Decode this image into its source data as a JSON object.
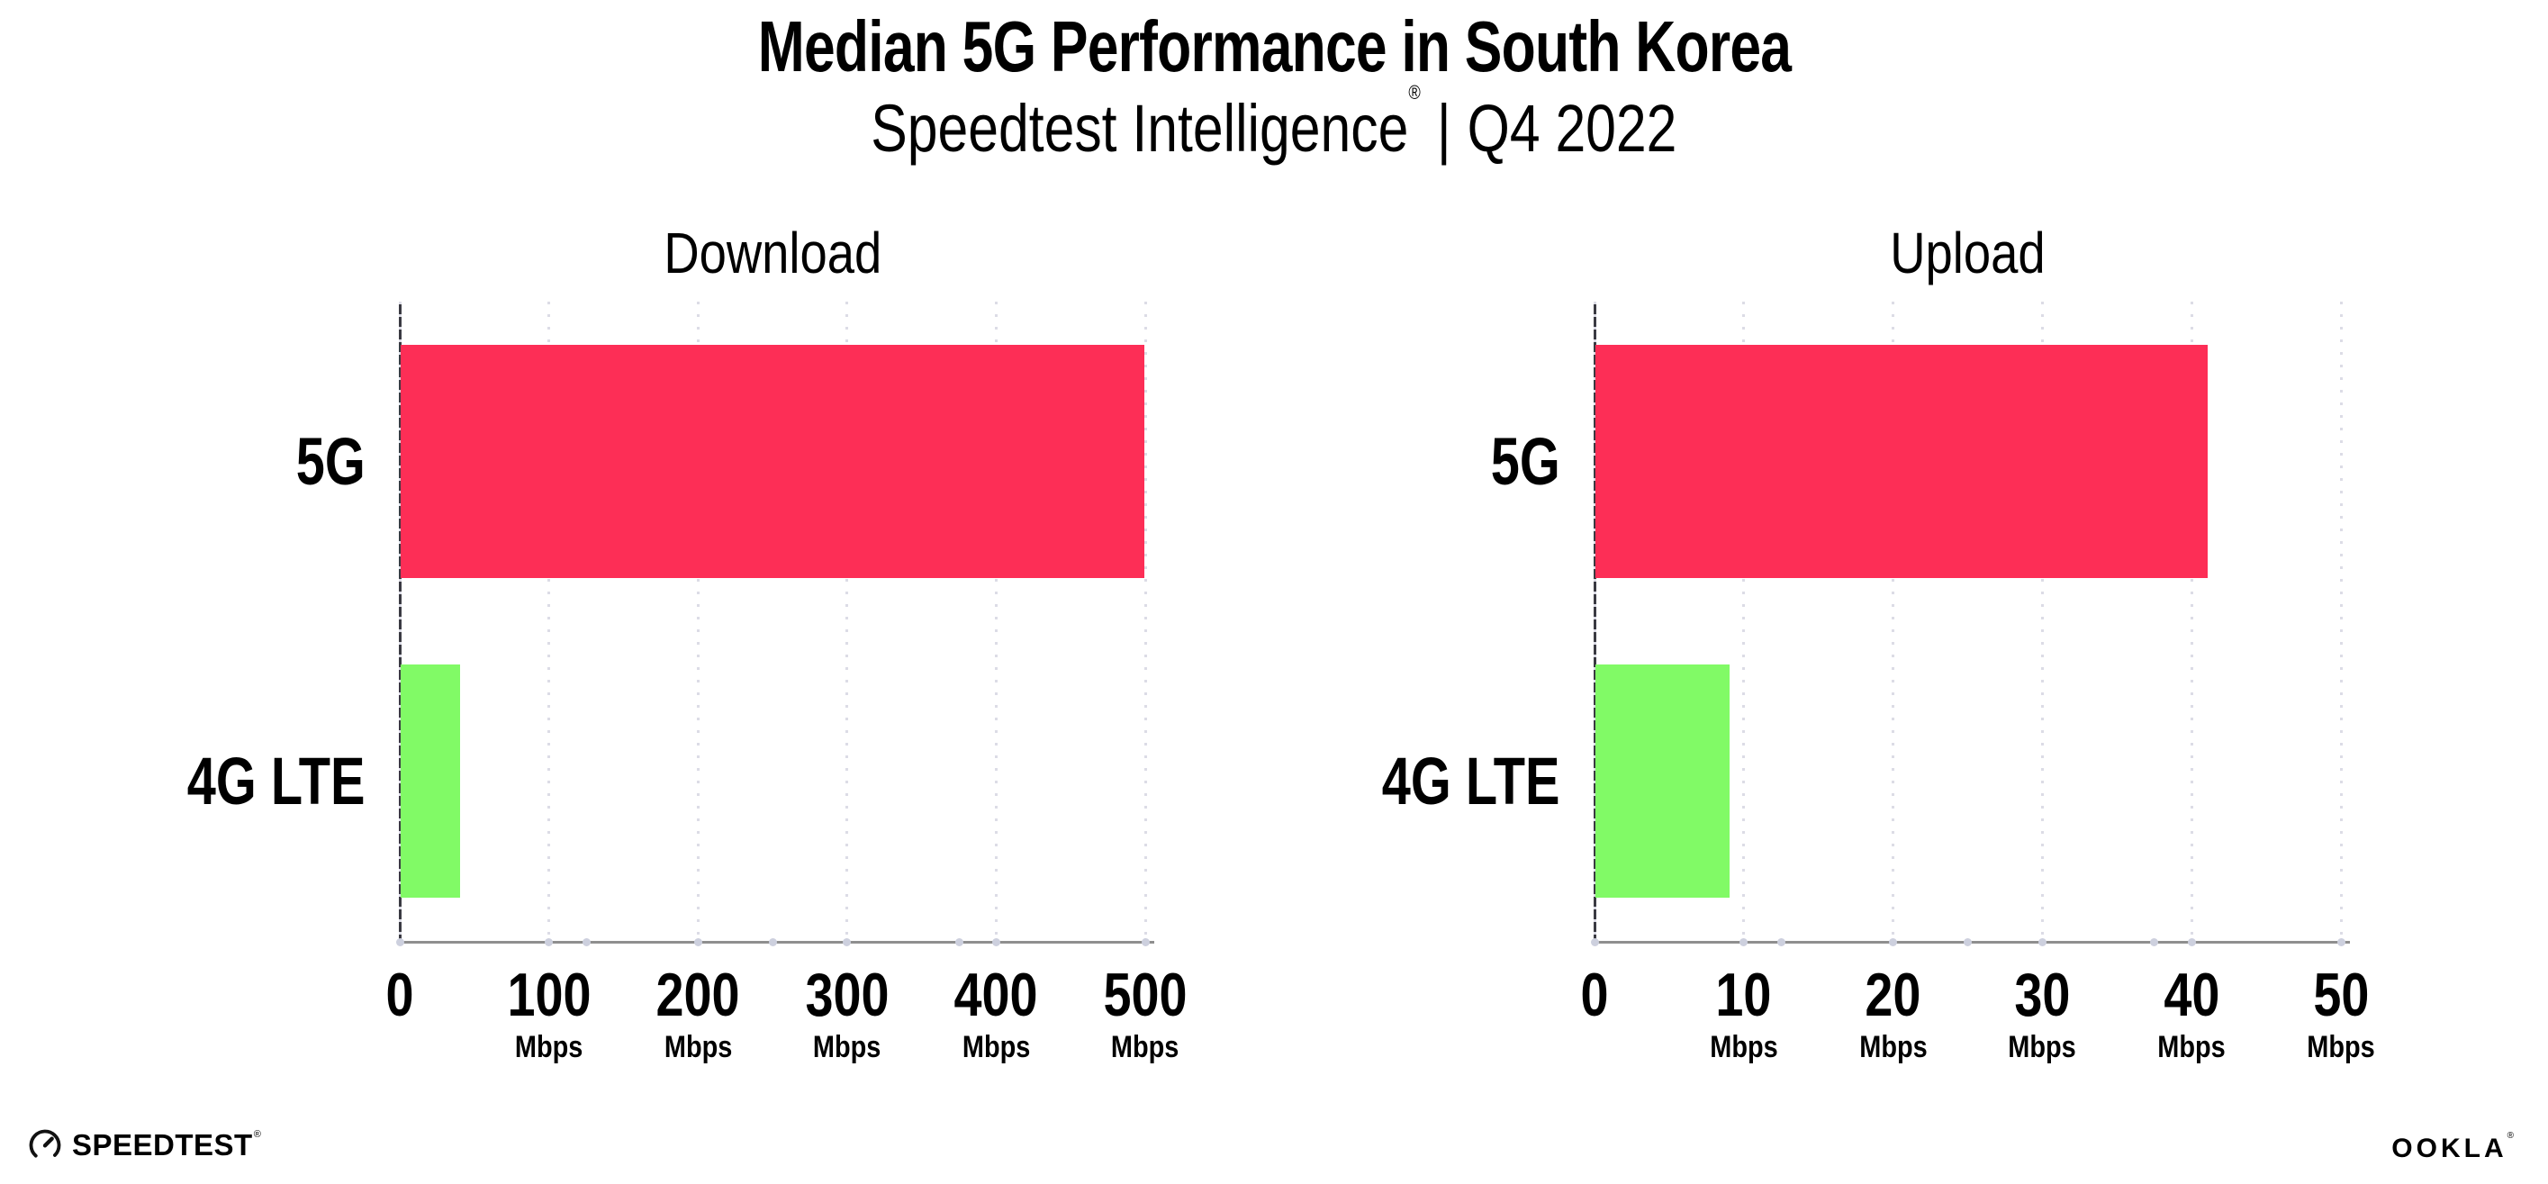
{
  "header": {
    "title": "Median 5G Performance in South Korea",
    "subtitle_brand": "Speedtest Intelligence",
    "subtitle_reg": "®",
    "subtitle_separator": "|",
    "subtitle_period": "Q4 2022"
  },
  "colors": {
    "bar_5g": "#fd2e56",
    "bar_4g_lte": "#81fa66",
    "y_axis": "#3a3a42",
    "x_axis": "#8f8f8f",
    "grid_dot": "#dcdce6",
    "axis_dot": "#cdd0de",
    "text": "#000000"
  },
  "chart_data": [
    {
      "type": "bar",
      "orientation": "horizontal",
      "title": "Download",
      "categories": [
        "5G",
        "4G LTE"
      ],
      "values": [
        499,
        40
      ],
      "unit": "Mbps",
      "xlim": [
        0,
        500
      ],
      "xticks": [
        0,
        100,
        200,
        300,
        400,
        500
      ],
      "xtick_unit_label": "Mbps",
      "grid": "dotted vertical gridlines at each tick",
      "legend": "none",
      "bar_colors": [
        "#fd2e56",
        "#81fa66"
      ]
    },
    {
      "type": "bar",
      "orientation": "horizontal",
      "title": "Upload",
      "categories": [
        "5G",
        "4G LTE"
      ],
      "values": [
        41,
        9
      ],
      "unit": "Mbps",
      "xlim": [
        0,
        50
      ],
      "xticks": [
        0,
        10,
        20,
        30,
        40,
        50
      ],
      "xtick_unit_label": "Mbps",
      "grid": "dotted vertical gridlines at each tick",
      "legend": "none",
      "bar_colors": [
        "#fd2e56",
        "#81fa66"
      ]
    }
  ],
  "footer": {
    "speedtest_label": "SPEEDTEST",
    "speedtest_reg": "®",
    "ookla_label": "OOKLA",
    "ookla_reg": "®"
  }
}
